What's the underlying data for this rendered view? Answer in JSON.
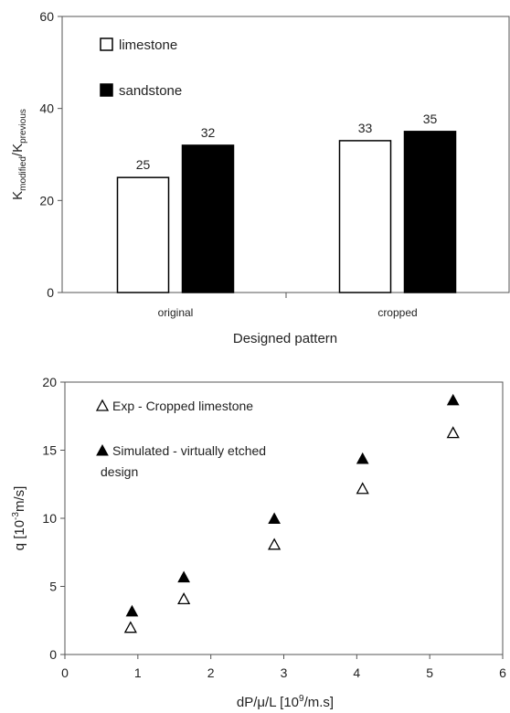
{
  "chart_data": [
    {
      "type": "bar",
      "title": "",
      "xlabel": "Designed pattern",
      "ylabel": {
        "main": "K",
        "sub1": "modified",
        "slash": "/K",
        "sub2": "previous"
      },
      "ylim": [
        0,
        60
      ],
      "yticks": [
        "0",
        "20",
        "40",
        "60"
      ],
      "categories": [
        "original",
        "cropped"
      ],
      "series": [
        {
          "name": "limestone",
          "values": [
            25,
            33
          ],
          "fill": "#ffffff",
          "stroke": "#000000"
        },
        {
          "name": "sandstone",
          "values": [
            32,
            35
          ],
          "fill": "#000000",
          "stroke": "#000000"
        }
      ],
      "data_labels": [
        [
          "25",
          "33"
        ],
        [
          "32",
          "35"
        ]
      ],
      "legend": "top-left",
      "grid": false
    },
    {
      "type": "scatter",
      "title": "",
      "xlabel": {
        "prefix": "dP/μ/L [10",
        "sup": "9",
        "suffix": "/m.s]"
      },
      "ylabel": {
        "prefix": "q [10",
        "sup": "-3",
        "suffix": "m/s]"
      },
      "xlim": [
        0,
        6
      ],
      "ylim": [
        0,
        20
      ],
      "xticks": [
        "0",
        "1",
        "2",
        "3",
        "4",
        "5",
        "6"
      ],
      "yticks": [
        "0",
        "5",
        "10",
        "15",
        "20"
      ],
      "series": [
        {
          "name": "Exp - Cropped limestone",
          "marker": "open-triangle",
          "x": [
            0.9,
            1.63,
            2.87,
            4.08,
            5.32
          ],
          "y": [
            2.0,
            4.1,
            8.1,
            12.2,
            16.3
          ]
        },
        {
          "name_lines": [
            "Simulated - virtually etched",
            "design"
          ],
          "marker": "filled-triangle",
          "x": [
            0.92,
            1.63,
            2.87,
            4.08,
            5.32
          ],
          "y": [
            3.2,
            5.7,
            10.0,
            14.4,
            18.7
          ]
        }
      ],
      "legend": "top-left",
      "grid": false
    }
  ],
  "colors": {
    "axis": "#333333",
    "text": "#222222",
    "marker": "#000000"
  }
}
